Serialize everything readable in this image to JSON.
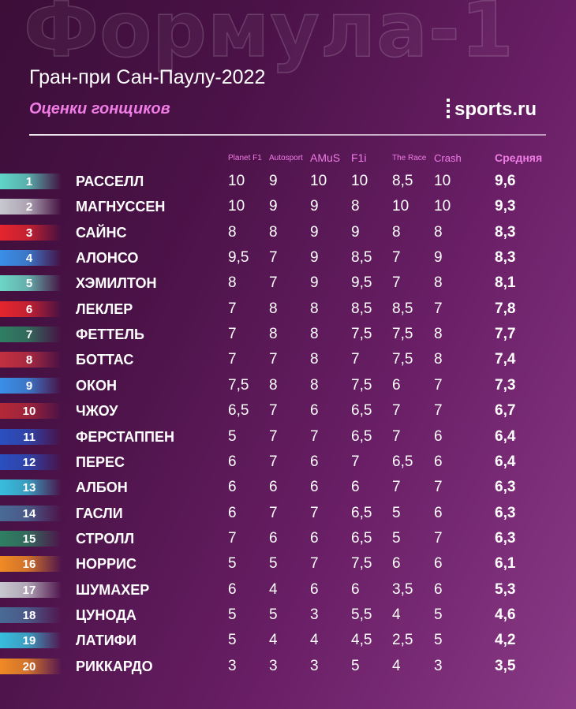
{
  "watermark": "Формула-1",
  "title": "Гран-при Сан-Паулу-2022",
  "subtitle": "Оценки гонщиков",
  "logo": "sports.ru",
  "headers": {
    "planet_f1": "Planet F1",
    "autosport": "Autosport",
    "amus": "AMuS",
    "f1i": "F1i",
    "the_race": "The Race",
    "crash": "Crash",
    "average": "Средняя"
  },
  "colors": {
    "accent": "#f07ce6",
    "background_dark": "#3c0e38",
    "background_light": "#8a3a86"
  },
  "drivers": [
    {
      "pos": "1",
      "name": "РАССЕЛЛ",
      "team_color": "#5fd6c8",
      "planet_f1": "10",
      "autosport": "9",
      "amus": "10",
      "f1i": "10",
      "the_race": "8,5",
      "crash": "10",
      "average": "9,6"
    },
    {
      "pos": "2",
      "name": "МАГНУССЕН",
      "team_color": "#c8c8d0",
      "planet_f1": "10",
      "autosport": "9",
      "amus": "9",
      "f1i": "8",
      "the_race": "10",
      "crash": "10",
      "average": "9,3"
    },
    {
      "pos": "3",
      "name": "САЙНС",
      "team_color": "#e4252e",
      "planet_f1": "8",
      "autosport": "8",
      "amus": "9",
      "f1i": "9",
      "the_race": "8",
      "crash": "8",
      "average": "8,3"
    },
    {
      "pos": "4",
      "name": "АЛОНСО",
      "team_color": "#3a8fe8",
      "planet_f1": "9,5",
      "autosport": "7",
      "amus": "9",
      "f1i": "8,5",
      "the_race": "7",
      "crash": "9",
      "average": "8,3"
    },
    {
      "pos": "5",
      "name": "ХЭМИЛТОН",
      "team_color": "#6dd6c6",
      "planet_f1": "8",
      "autosport": "7",
      "amus": "9",
      "f1i": "9,5",
      "the_race": "7",
      "crash": "8",
      "average": "8,1"
    },
    {
      "pos": "6",
      "name": "ЛЕКЛЕР",
      "team_color": "#e4252e",
      "planet_f1": "7",
      "autosport": "8",
      "amus": "8",
      "f1i": "8,5",
      "the_race": "8,5",
      "crash": "7",
      "average": "7,8"
    },
    {
      "pos": "7",
      "name": "ФЕТТЕЛЬ",
      "team_color": "#2e7f62",
      "planet_f1": "7",
      "autosport": "8",
      "amus": "8",
      "f1i": "7,5",
      "the_race": "7,5",
      "crash": "8",
      "average": "7,7"
    },
    {
      "pos": "8",
      "name": "БОТТАС",
      "team_color": "#c23040",
      "planet_f1": "7",
      "autosport": "7",
      "amus": "8",
      "f1i": "7",
      "the_race": "7,5",
      "crash": "8",
      "average": "7,4"
    },
    {
      "pos": "9",
      "name": "ОКОН",
      "team_color": "#3a8fe8",
      "planet_f1": "7,5",
      "autosport": "8",
      "amus": "8",
      "f1i": "7,5",
      "the_race": "6",
      "crash": "7",
      "average": "7,3"
    },
    {
      "pos": "10",
      "name": "ЧЖОУ",
      "team_color": "#b42838",
      "planet_f1": "6,5",
      "autosport": "7",
      "amus": "6",
      "f1i": "6,5",
      "the_race": "7",
      "crash": "7",
      "average": "6,7"
    },
    {
      "pos": "11",
      "name": "ФЕРСТАППЕН",
      "team_color": "#2a4fc0",
      "planet_f1": "5",
      "autosport": "7",
      "amus": "7",
      "f1i": "6,5",
      "the_race": "7",
      "crash": "6",
      "average": "6,4"
    },
    {
      "pos": "12",
      "name": "ПЕРЕС",
      "team_color": "#2a4fc0",
      "planet_f1": "6",
      "autosport": "7",
      "amus": "6",
      "f1i": "7",
      "the_race": "6,5",
      "crash": "6",
      "average": "6,4"
    },
    {
      "pos": "13",
      "name": "АЛБОН",
      "team_color": "#37bedd",
      "planet_f1": "6",
      "autosport": "6",
      "amus": "6",
      "f1i": "6",
      "the_race": "7",
      "crash": "7",
      "average": "6,3"
    },
    {
      "pos": "14",
      "name": "ГАСЛИ",
      "team_color": "#4a6a96",
      "planet_f1": "6",
      "autosport": "7",
      "amus": "7",
      "f1i": "6,5",
      "the_race": "5",
      "crash": "6",
      "average": "6,3"
    },
    {
      "pos": "15",
      "name": "СТРОЛЛ",
      "team_color": "#2e7f62",
      "planet_f1": "7",
      "autosport": "6",
      "amus": "6",
      "f1i": "6,5",
      "the_race": "5",
      "crash": "7",
      "average": "6,3"
    },
    {
      "pos": "16",
      "name": "НОРРИС",
      "team_color": "#f08a24",
      "planet_f1": "5",
      "autosport": "5",
      "amus": "7",
      "f1i": "7,5",
      "the_race": "6",
      "crash": "6",
      "average": "6,1"
    },
    {
      "pos": "17",
      "name": "ШУМАХЕР",
      "team_color": "#c8c8d0",
      "planet_f1": "6",
      "autosport": "4",
      "amus": "6",
      "f1i": "6",
      "the_race": "3,5",
      "crash": "6",
      "average": "5,3"
    },
    {
      "pos": "18",
      "name": "ЦУНОДА",
      "team_color": "#4a6a96",
      "planet_f1": "5",
      "autosport": "5",
      "amus": "3",
      "f1i": "5,5",
      "the_race": "4",
      "crash": "5",
      "average": "4,6"
    },
    {
      "pos": "19",
      "name": "ЛАТИФИ",
      "team_color": "#37bedd",
      "planet_f1": "5",
      "autosport": "4",
      "amus": "4",
      "f1i": "4,5",
      "the_race": "2,5",
      "crash": "5",
      "average": "4,2"
    },
    {
      "pos": "20",
      "name": "РИККАРДО",
      "team_color": "#f08a24",
      "planet_f1": "3",
      "autosport": "3",
      "amus": "3",
      "f1i": "5",
      "the_race": "4",
      "crash": "3",
      "average": "3,5"
    }
  ]
}
